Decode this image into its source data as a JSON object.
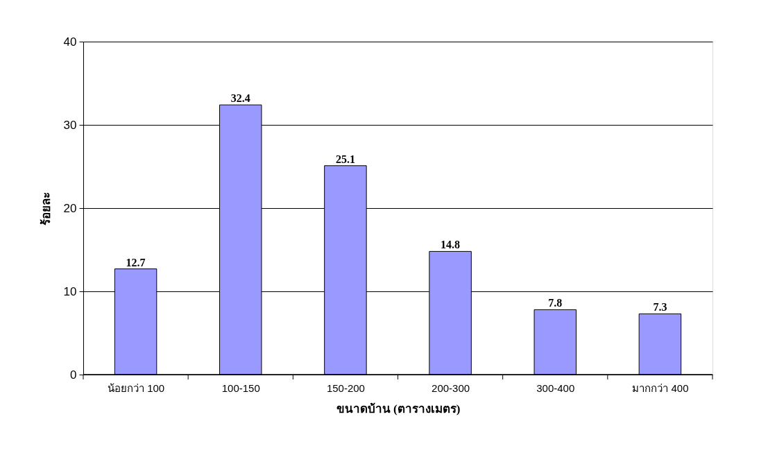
{
  "chart_data": {
    "type": "bar",
    "xlabel": "ขนาดบ้าน (ตารางเมตร)",
    "ylabel": "ร้อยละ",
    "categories": [
      "น้อยกว่า 100",
      "100-150",
      "150-200",
      "200-300",
      "300-400",
      "มากกว่า 400"
    ],
    "values": [
      12.7,
      32.4,
      25.1,
      14.8,
      7.8,
      7.3
    ],
    "color": "#9999ff",
    "ylim": [
      0,
      40
    ],
    "yticks": [
      0,
      10,
      20,
      30,
      40
    ],
    "grid": "y",
    "data_labels": true
  }
}
